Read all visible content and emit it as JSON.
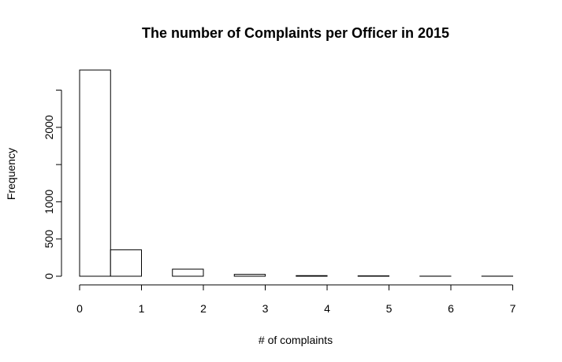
{
  "chart_data": {
    "type": "bar",
    "title": "The number of Complaints per Officer in 2015",
    "xlabel": "# of complaints",
    "ylabel": "Frequency",
    "bins": [
      {
        "x0": 0.0,
        "x1": 0.5,
        "count": 2770
      },
      {
        "x0": 0.5,
        "x1": 1.0,
        "count": 355
      },
      {
        "x0": 1.0,
        "x1": 1.5,
        "count": 0
      },
      {
        "x0": 1.5,
        "x1": 2.0,
        "count": 95
      },
      {
        "x0": 2.0,
        "x1": 2.5,
        "count": 0
      },
      {
        "x0": 2.5,
        "x1": 3.0,
        "count": 25
      },
      {
        "x0": 3.0,
        "x1": 3.5,
        "count": 0
      },
      {
        "x0": 3.5,
        "x1": 4.0,
        "count": 8
      },
      {
        "x0": 4.0,
        "x1": 4.5,
        "count": 0
      },
      {
        "x0": 4.5,
        "x1": 5.0,
        "count": 5
      },
      {
        "x0": 5.0,
        "x1": 5.5,
        "count": 0
      },
      {
        "x0": 5.5,
        "x1": 6.0,
        "count": 1
      },
      {
        "x0": 6.0,
        "x1": 6.5,
        "count": 0
      },
      {
        "x0": 6.5,
        "x1": 7.0,
        "count": 1
      }
    ],
    "xlim": [
      0,
      7
    ],
    "ylim": [
      0,
      2770
    ],
    "x_ticks": [
      0,
      1,
      2,
      3,
      4,
      5,
      6,
      7
    ],
    "y_ticks": [
      0,
      500,
      1000,
      1500,
      2000,
      2500
    ],
    "y_tick_labels": [
      "0",
      "500",
      "1000",
      "",
      "2000",
      ""
    ],
    "grid": false
  }
}
